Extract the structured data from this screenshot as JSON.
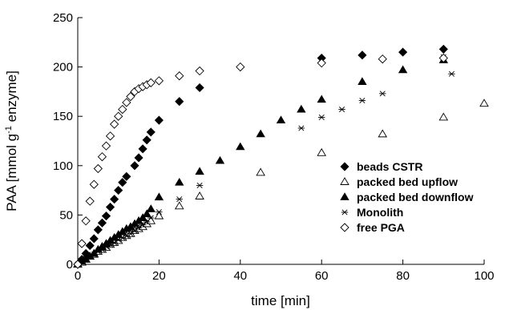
{
  "chart_data": {
    "type": "scatter",
    "title": "",
    "xlabel": "time [min]",
    "ylabel_prefix": "PAA [mmol g",
    "ylabel_sup": "-1",
    "ylabel_suffix": " enzyme]",
    "xlim": [
      0,
      100
    ],
    "ylim": [
      0,
      250
    ],
    "xticks": [
      0,
      20,
      40,
      60,
      80,
      100
    ],
    "yticks": [
      0,
      50,
      100,
      150,
      200,
      250
    ],
    "grid": false,
    "legend_position": "right",
    "series": [
      {
        "name": "beads CSTR",
        "marker": "diamond-filled",
        "x": [
          0,
          1,
          2,
          3,
          4,
          5,
          6,
          7,
          8,
          9,
          10,
          11,
          12,
          14,
          15,
          16,
          17,
          18,
          20,
          25,
          30,
          60,
          70,
          80,
          90
        ],
        "y": [
          0,
          5,
          11,
          19,
          26,
          35,
          42,
          49,
          58,
          66,
          75,
          83,
          89,
          100,
          108,
          117,
          126,
          134,
          146,
          165,
          179,
          209,
          212,
          215,
          218
        ]
      },
      {
        "name": "packed bed upflow",
        "marker": "triangle-open",
        "x": [
          0,
          1,
          2,
          3,
          4,
          5,
          6,
          7,
          8,
          9,
          10,
          11,
          12,
          13,
          14,
          15,
          16,
          17,
          18,
          20,
          25,
          30,
          45,
          60,
          75,
          90,
          100
        ],
        "y": [
          0,
          2,
          5,
          8,
          10,
          13,
          15,
          17,
          20,
          22,
          24,
          27,
          29,
          31,
          34,
          36,
          38,
          41,
          44,
          49,
          59,
          69,
          93,
          113,
          132,
          149,
          163
        ]
      },
      {
        "name": "packed bed downflow",
        "marker": "triangle-filled",
        "x": [
          0,
          1,
          2,
          3,
          4,
          5,
          6,
          7,
          8,
          9,
          10,
          11,
          12,
          13,
          14,
          15,
          16,
          17,
          18,
          20,
          25,
          30,
          35,
          40,
          45,
          50,
          55,
          60,
          70,
          80,
          90
        ],
        "y": [
          0,
          3,
          5,
          8,
          11,
          15,
          18,
          21,
          24,
          27,
          30,
          33,
          36,
          38,
          41,
          44,
          47,
          51,
          56,
          68,
          83,
          94,
          105,
          119,
          132,
          146,
          157,
          167,
          185,
          197,
          207
        ]
      },
      {
        "name": "Monolith",
        "marker": "asterisk",
        "x": [
          0,
          1,
          2,
          3,
          4,
          5,
          6,
          7,
          8,
          9,
          10,
          11,
          12,
          13,
          14,
          15,
          16,
          17,
          18,
          20,
          25,
          30,
          55,
          60,
          65,
          70,
          75,
          90,
          92
        ],
        "y": [
          0,
          3,
          6,
          8,
          10,
          13,
          15,
          18,
          20,
          22,
          25,
          27,
          29,
          31,
          34,
          37,
          40,
          43,
          47,
          53,
          66,
          80,
          138,
          149,
          157,
          166,
          173,
          210,
          193
        ]
      },
      {
        "name": "free PGA",
        "marker": "diamond-open",
        "x": [
          0,
          1,
          2,
          3,
          4,
          5,
          6,
          7,
          8,
          9,
          10,
          11,
          12,
          13,
          14,
          15,
          16,
          17,
          18,
          20,
          25,
          30,
          40,
          60,
          75,
          90
        ],
        "y": [
          0,
          21,
          44,
          64,
          81,
          97,
          109,
          120,
          130,
          142,
          150,
          157,
          164,
          170,
          175,
          178,
          180,
          182,
          184,
          186,
          191,
          196,
          200,
          204,
          208,
          209
        ]
      }
    ]
  }
}
